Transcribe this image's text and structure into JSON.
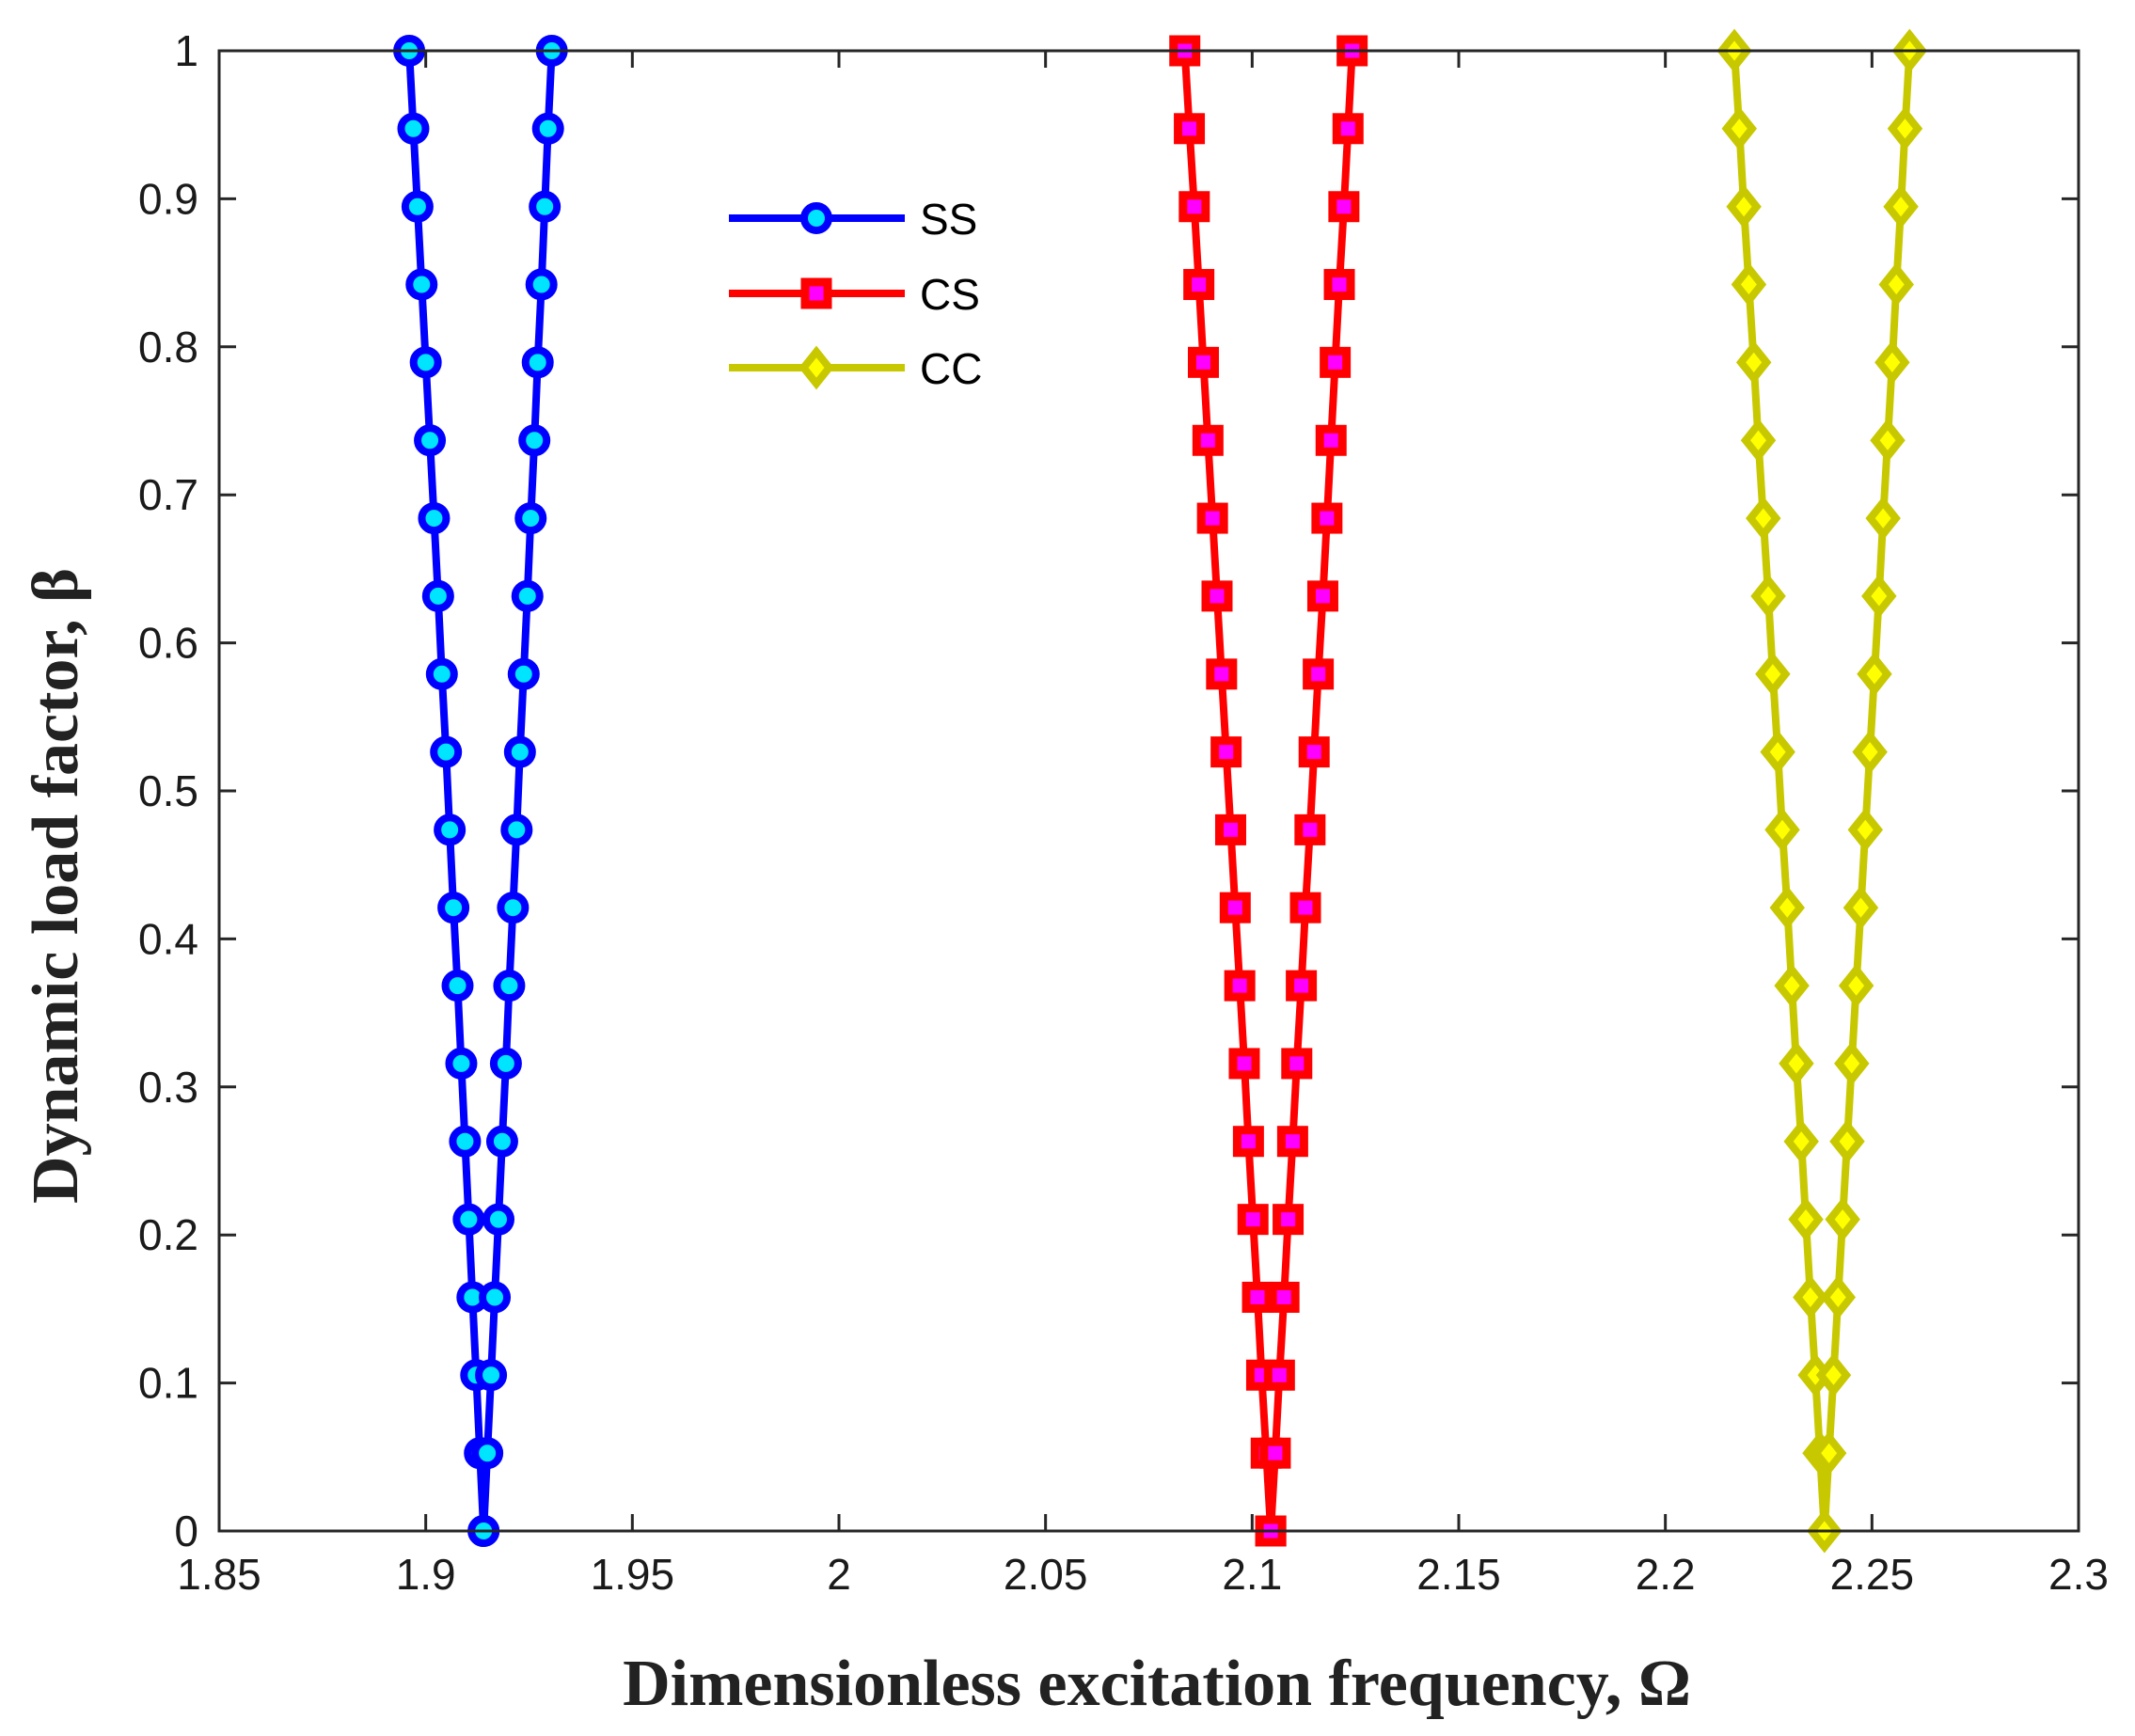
{
  "chart_data": {
    "type": "line",
    "title": "",
    "xlabel": "Dimensionless excitation frequency, Ω",
    "ylabel": "Dynamic load factor, β",
    "xlim": [
      1.85,
      2.3
    ],
    "ylim": [
      0,
      1
    ],
    "xticks": [
      "1.85",
      "1.9",
      "1.95",
      "2",
      "2.05",
      "2.1",
      "2.15",
      "2.2",
      "2.25",
      "2.3"
    ],
    "yticks": [
      "0",
      "0.1",
      "0.2",
      "0.3",
      "0.4",
      "0.5",
      "0.6",
      "0.7",
      "0.8",
      "0.9",
      "1"
    ],
    "grid": false,
    "legend_position": "top-center",
    "beta": [
      0,
      0.0526,
      0.1053,
      0.1579,
      0.2105,
      0.2632,
      0.3158,
      0.3684,
      0.4211,
      0.4737,
      0.5263,
      0.5789,
      0.6316,
      0.6842,
      0.7368,
      0.7895,
      0.8421,
      0.8947,
      0.9474,
      1.0
    ],
    "series": [
      {
        "name": "SS",
        "line_color": "#0000ff",
        "marker": "circle",
        "marker_edge": "#0000ff",
        "marker_fill": "#00e5ff",
        "lower": [
          1.914,
          1.9131,
          1.9122,
          1.9113,
          1.9104,
          1.9095,
          1.9086,
          1.9077,
          1.9067,
          1.9058,
          1.9049,
          1.9039,
          1.903,
          1.902,
          1.901,
          1.9,
          1.899,
          1.898,
          1.897,
          1.896
        ],
        "upper": [
          1.914,
          1.9149,
          1.9158,
          1.9167,
          1.9176,
          1.9185,
          1.9194,
          1.9202,
          1.9211,
          1.922,
          1.9228,
          1.9237,
          1.9246,
          1.9254,
          1.9263,
          1.9271,
          1.928,
          1.9288,
          1.9296,
          1.9305
        ]
      },
      {
        "name": "CS",
        "line_color": "#ff0000",
        "marker": "square",
        "marker_edge": "#ff0000",
        "marker_fill": "#ff00ff",
        "lower": [
          2.1045,
          2.1034,
          2.1023,
          2.1013,
          2.1002,
          2.0991,
          2.0981,
          2.097,
          2.0959,
          2.0948,
          2.0937,
          2.0926,
          2.0915,
          2.0904,
          2.0893,
          2.0882,
          2.0871,
          2.086,
          2.0848,
          2.0837
        ],
        "upper": [
          2.1045,
          2.1056,
          2.1066,
          2.1077,
          2.1087,
          2.1098,
          2.1108,
          2.1119,
          2.1129,
          2.114,
          2.115,
          2.116,
          2.1171,
          2.1181,
          2.1191,
          2.1201,
          2.1211,
          2.1222,
          2.1232,
          2.1242
        ]
      },
      {
        "name": "CC",
        "line_color": "#c8c800",
        "marker": "diamond",
        "marker_edge": "#c8c800",
        "marker_fill": "#ffff00",
        "lower": [
          2.2385,
          2.2374,
          2.2363,
          2.2351,
          2.234,
          2.2329,
          2.2317,
          2.2306,
          2.2295,
          2.2283,
          2.2272,
          2.226,
          2.2249,
          2.2237,
          2.2225,
          2.2214,
          2.2202,
          2.219,
          2.2179,
          2.2167
        ],
        "upper": [
          2.2385,
          2.2396,
          2.2407,
          2.2418,
          2.2429,
          2.244,
          2.2451,
          2.2462,
          2.2473,
          2.2484,
          2.2495,
          2.2506,
          2.2517,
          2.2527,
          2.2538,
          2.2549,
          2.2559,
          2.257,
          2.258,
          2.2591
        ]
      }
    ]
  }
}
